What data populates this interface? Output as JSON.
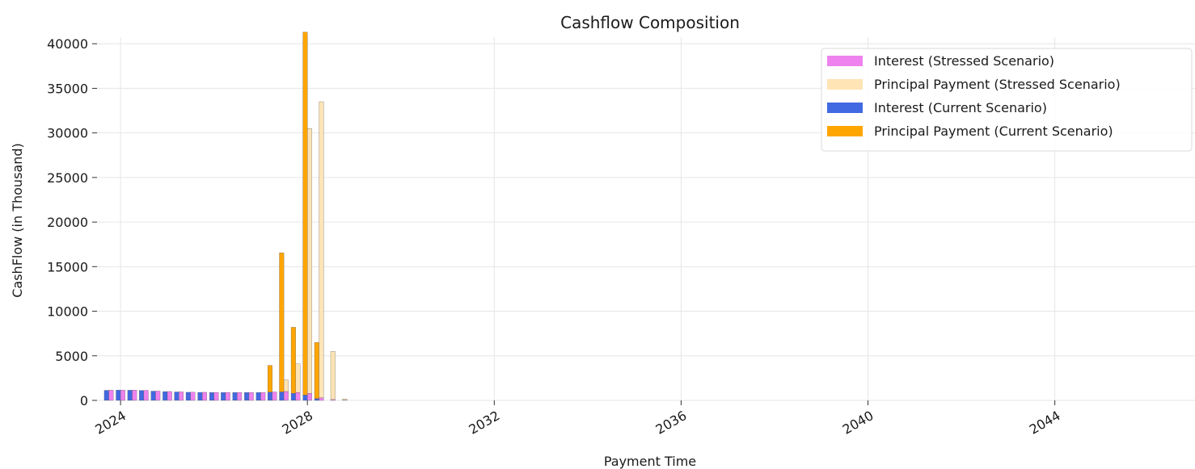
{
  "chart_data": {
    "type": "bar",
    "title": "Cashflow Composition",
    "xlabel": "Payment Time",
    "ylabel": "CashFlow (in Thousand)",
    "ylim": [
      0,
      40000
    ],
    "yticks": [
      0,
      5000,
      10000,
      15000,
      20000,
      25000,
      30000,
      35000,
      40000
    ],
    "xlim": [
      "2023-07-01",
      "2047-01-01"
    ],
    "xticks": [
      {
        "label": "2024",
        "date": "2024-01-01"
      },
      {
        "label": "2028",
        "date": "2028-01-01"
      },
      {
        "label": "2032",
        "date": "2032-01-01"
      },
      {
        "label": "2036",
        "date": "2036-01-01"
      },
      {
        "label": "2040",
        "date": "2040-01-01"
      },
      {
        "label": "2044",
        "date": "2044-01-01"
      }
    ],
    "grid": true,
    "legend_position": "top-right",
    "dates": [
      "2023-10",
      "2024-01",
      "2024-04",
      "2024-07",
      "2024-10",
      "2025-01",
      "2025-04",
      "2025-07",
      "2025-10",
      "2026-01",
      "2026-04",
      "2026-07",
      "2026-10",
      "2027-01",
      "2027-04",
      "2027-07",
      "2027-10",
      "2028-01",
      "2028-04",
      "2028-07",
      "2028-10"
    ],
    "series": [
      {
        "name": "Interest (Stressed Scenario)",
        "color": "#ee82ee",
        "values": [
          1150,
          1150,
          1150,
          1130,
          1050,
          1000,
          960,
          920,
          910,
          900,
          900,
          900,
          900,
          900,
          950,
          1000,
          900,
          800,
          300,
          100,
          30
        ]
      },
      {
        "name": "Principal Payment (Stressed Scenario)",
        "color": "#ffe4b5",
        "values": [
          0,
          0,
          0,
          0,
          0,
          0,
          0,
          0,
          0,
          0,
          0,
          0,
          0,
          0,
          0,
          1300,
          3200,
          29700,
          33200,
          5400,
          120
        ]
      },
      {
        "name": "Interest (Current Scenario)",
        "color": "#4169e1",
        "values": [
          1130,
          1150,
          1140,
          1120,
          1040,
          990,
          950,
          910,
          900,
          890,
          890,
          890,
          890,
          890,
          930,
          950,
          800,
          600,
          200,
          0,
          0
        ]
      },
      {
        "name": "Principal Payment (Current Scenario)",
        "color": "#ffa500",
        "values": [
          0,
          0,
          0,
          0,
          0,
          0,
          0,
          0,
          0,
          0,
          0,
          0,
          0,
          0,
          3000,
          15600,
          7400,
          40700,
          6300,
          0,
          0
        ]
      }
    ]
  }
}
